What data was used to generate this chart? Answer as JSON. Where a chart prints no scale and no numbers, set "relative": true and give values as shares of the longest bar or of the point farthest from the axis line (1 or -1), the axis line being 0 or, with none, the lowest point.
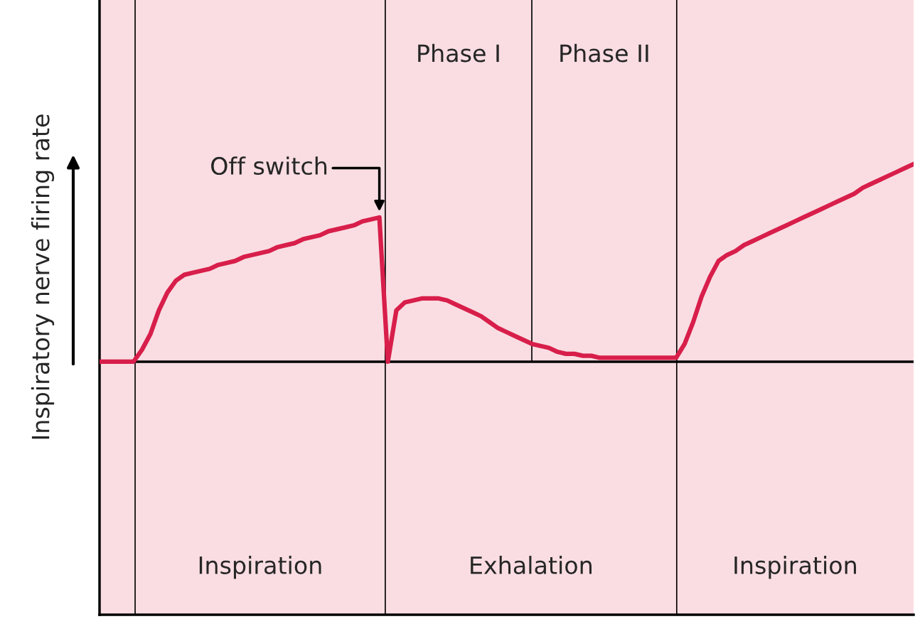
{
  "chart_data": {
    "type": "line",
    "relative": true,
    "ylabel": "Inspiratory nerve firing rate",
    "marker": "none",
    "line_style": "solid",
    "categories": [
      null,
      null,
      null,
      null,
      null,
      null,
      null,
      null,
      null,
      null,
      null,
      null,
      null,
      null,
      null,
      null,
      null,
      null,
      null,
      null,
      null,
      null,
      null,
      null,
      null,
      null,
      null,
      null,
      null,
      null,
      null,
      null,
      null,
      null,
      null,
      null,
      null,
      null,
      null,
      null,
      null,
      null,
      null,
      null,
      null,
      null,
      null,
      null,
      null,
      null,
      null,
      null,
      null,
      null,
      null,
      null,
      null,
      null,
      null,
      null,
      null,
      null,
      null,
      null,
      null,
      null,
      null,
      null,
      null,
      null,
      null,
      null,
      null,
      null,
      null,
      null,
      null,
      null,
      null,
      null,
      null,
      null,
      null,
      null,
      null,
      null,
      null,
      null,
      null,
      null,
      null,
      null,
      null,
      null,
      null,
      null,
      null
    ],
    "series": [
      {
        "color": "#d81e4a",
        "values": [
          0,
          0,
          0,
          0,
          0,
          0.06,
          0.14,
          0.26,
          0.35,
          0.41,
          0.44,
          0.45,
          0.46,
          0.47,
          0.49,
          0.5,
          0.51,
          0.53,
          0.54,
          0.55,
          0.56,
          0.58,
          0.59,
          0.6,
          0.62,
          0.63,
          0.64,
          0.66,
          0.67,
          0.68,
          0.69,
          0.71,
          0.72,
          0.73,
          0,
          0.26,
          0.3,
          0.31,
          0.32,
          0.32,
          0.32,
          0.31,
          0.29,
          0.27,
          0.25,
          0.23,
          0.2,
          0.17,
          0.15,
          0.13,
          0.11,
          0.09,
          0.08,
          0.07,
          0.05,
          0.04,
          0.04,
          0.03,
          0.03,
          0.02,
          0.02,
          0.02,
          0.02,
          0.02,
          0.02,
          0.02,
          0.02,
          0.02,
          0.02,
          0.09,
          0.2,
          0.33,
          0.43,
          0.51,
          0.54,
          0.56,
          0.59,
          0.61,
          0.63,
          0.65,
          0.67,
          0.69,
          0.71,
          0.73,
          0.75,
          0.77,
          0.79,
          0.81,
          0.83,
          0.85,
          0.88,
          0.9,
          0.92,
          0.94,
          0.96,
          0.98,
          1
        ]
      }
    ],
    "annotations": [
      "Off switch",
      "Phase I",
      "Phase II",
      "Inspiration",
      "Exhalation",
      "Inspiration"
    ]
  }
}
